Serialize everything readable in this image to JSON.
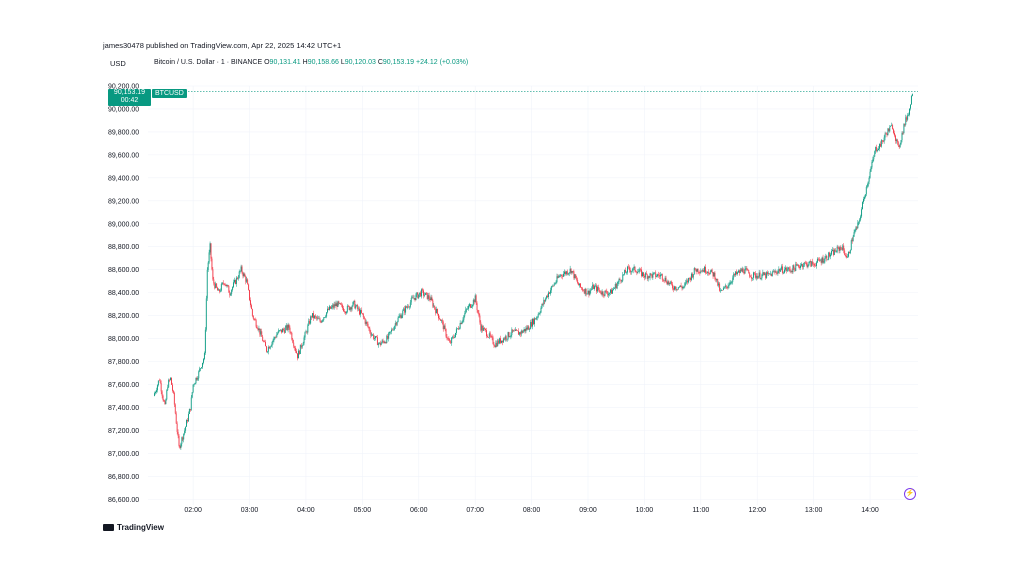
{
  "header": {
    "publisher": "james30478 published on TradingView.com, Apr 22, 2025 14:42 UTC+1",
    "currency": "USD"
  },
  "legend": {
    "symbol": "Bitcoin / U.S. Dollar · 1 · BINANCE",
    "open_label": "O",
    "open": "90,131.41",
    "high_label": "H",
    "high": "90,158.66",
    "low_label": "L",
    "low": "90,120.03",
    "close_label": "C",
    "close": "90,153.19",
    "change": "+24.12 (+0.03%)"
  },
  "badge": {
    "price": "90,153.19",
    "timer": "00:42",
    "symbol": "BTCUSD"
  },
  "footer": {
    "brand": "TradingView"
  },
  "colors": {
    "up": "#089981",
    "down": "#f23645",
    "grid": "#f0f3fa"
  },
  "chart_data": {
    "type": "line",
    "title": "",
    "xlabel": "",
    "ylabel": "",
    "x_ticks": [
      "02:00",
      "03:00",
      "04:00",
      "05:00",
      "06:00",
      "07:00",
      "08:00",
      "09:00",
      "10:00",
      "11:00",
      "12:00",
      "13:00",
      "14:00"
    ],
    "y_ticks": [
      "86,600.00",
      "86,800.00",
      "87,000.00",
      "87,200.00",
      "87,400.00",
      "87,600.00",
      "87,800.00",
      "88,000.00",
      "88,200.00",
      "88,400.00",
      "88,600.00",
      "88,800.00",
      "89,000.00",
      "89,200.00",
      "89,400.00",
      "89,600.00",
      "89,800.00",
      "90,000.00",
      "90,200.00"
    ],
    "ylim": [
      86550,
      90200
    ],
    "xlim": [
      1.2,
      14.85
    ],
    "grid": true,
    "series": [
      {
        "x": [
          1.3,
          1.4,
          1.5,
          1.55,
          1.6,
          1.65,
          1.75,
          1.85,
          1.95,
          2.0,
          2.1,
          2.2,
          2.25,
          2.3,
          2.35,
          2.45,
          2.55,
          2.65,
          2.75,
          2.85,
          2.95,
          3.05,
          3.15,
          3.3,
          3.5,
          3.7,
          3.85,
          4.0,
          4.1,
          4.25,
          4.4,
          4.55,
          4.7,
          4.85,
          5.0,
          5.15,
          5.3,
          5.45,
          5.6,
          5.75,
          5.9,
          6.05,
          6.2,
          6.4,
          6.55,
          6.7,
          6.85,
          7.0,
          7.1,
          7.2,
          7.35,
          7.5,
          7.65,
          7.8,
          7.95,
          8.1,
          8.3,
          8.5,
          8.7,
          8.85,
          9.0,
          9.1,
          9.25,
          9.4,
          9.55,
          9.7,
          9.85,
          10.0,
          10.15,
          10.3,
          10.5,
          10.7,
          10.9,
          11.1,
          11.25,
          11.35,
          11.45,
          11.6,
          11.75,
          11.9,
          12.05,
          12.2,
          12.4,
          12.6,
          12.8,
          13.0,
          13.2,
          13.35,
          13.5,
          13.6,
          13.7,
          13.8,
          13.9,
          14.0,
          14.1,
          14.2,
          14.3,
          14.4,
          14.5,
          14.6,
          14.7,
          14.75
        ],
        "values": [
          87500,
          87650,
          87400,
          87600,
          87650,
          87500,
          87050,
          87200,
          87400,
          87600,
          87700,
          87850,
          88600,
          88800,
          88500,
          88400,
          88500,
          88400,
          88500,
          88600,
          88500,
          88200,
          88100,
          87900,
          88050,
          88100,
          87850,
          88050,
          88200,
          88150,
          88250,
          88300,
          88250,
          88300,
          88200,
          88050,
          87950,
          88000,
          88150,
          88250,
          88350,
          88400,
          88350,
          88150,
          87950,
          88100,
          88250,
          88350,
          88100,
          88050,
          87950,
          88000,
          88050,
          88050,
          88100,
          88200,
          88400,
          88550,
          88600,
          88450,
          88400,
          88450,
          88400,
          88400,
          88500,
          88600,
          88600,
          88550,
          88550,
          88550,
          88450,
          88450,
          88600,
          88600,
          88550,
          88400,
          88450,
          88550,
          88600,
          88550,
          88550,
          88550,
          88600,
          88600,
          88650,
          88650,
          88700,
          88750,
          88800,
          88700,
          88900,
          89000,
          89250,
          89450,
          89650,
          89700,
          89800,
          89850,
          89650,
          89850,
          90000,
          90153
        ]
      }
    ]
  }
}
